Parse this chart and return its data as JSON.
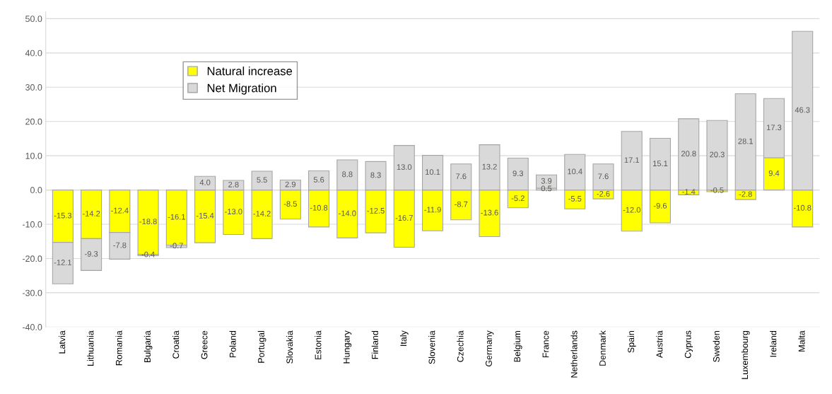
{
  "chart_data": {
    "type": "bar",
    "stacked": true,
    "categories": [
      "Latvia",
      "Lithuania",
      "Romania",
      "Bulgaria",
      "Croatia",
      "Greece",
      "Poland",
      "Portugal",
      "Slovakia",
      "Estonia",
      "Hungary",
      "Finland",
      "Italy",
      "Slovenia",
      "Czechia",
      "Germany",
      "Belgium",
      "France",
      "Netherlands",
      "Denmark",
      "Spain",
      "Austria",
      "Cyprus",
      "Sweden",
      "Luxembourg",
      "Ireland",
      "Malta"
    ],
    "series": [
      {
        "name": "Natural increase",
        "color": "#ffff00",
        "values": [
          -15.3,
          -14.2,
          -12.4,
          -18.8,
          -16.1,
          -15.4,
          -13.0,
          -14.2,
          -8.5,
          -10.8,
          -14.0,
          -12.5,
          -16.7,
          -11.9,
          -8.7,
          -13.6,
          -5.2,
          0.5,
          -5.5,
          -2.6,
          -12.0,
          -9.6,
          -1.4,
          -0.5,
          -2.8,
          9.4,
          -10.8
        ],
        "value_labels": [
          "-15.3",
          "-14.2",
          "-12.4",
          "-18.8",
          "-16.1",
          "-15.4",
          "-13.0",
          "-14.2",
          "-8.5",
          "-10.8",
          "-14.0",
          "-12.5",
          "-16.7",
          "-11.9",
          "-8.7",
          "-13.6",
          "-5.2",
          "0.5",
          "-5.5",
          "-2.6",
          "-12.0",
          "-9.6",
          "-1.4",
          "-0.5",
          "-2.8",
          "9.4",
          "-10.8"
        ]
      },
      {
        "name": "Net Migration",
        "color": "#d9d9d9",
        "values": [
          -12.1,
          -9.3,
          -7.8,
          -0.4,
          -0.7,
          4.0,
          2.8,
          5.5,
          2.9,
          5.6,
          8.8,
          8.3,
          13.0,
          10.1,
          7.6,
          13.2,
          9.3,
          3.9,
          10.4,
          7.6,
          17.1,
          15.1,
          20.8,
          20.3,
          28.1,
          17.3,
          46.3
        ],
        "value_labels": [
          "-12.1",
          "-9.3",
          "-7.8",
          "-0.4",
          "-0.7",
          "4.0",
          "2.8",
          "5.5",
          "2.9",
          "5.6",
          "8.8",
          "8.3",
          "13.0",
          "10.1",
          "7.6",
          "13.2",
          "9.3",
          "3.9",
          "10.4",
          "7.6",
          "17.1",
          "15.1",
          "20.8",
          "20.3",
          "28.1",
          "17.3",
          "46.3"
        ]
      }
    ],
    "ylim": [
      -40,
      52
    ],
    "yticks": [
      {
        "value": -40,
        "label": "-40.0"
      },
      {
        "value": -30,
        "label": "-30.0"
      },
      {
        "value": -20,
        "label": "-20.0"
      },
      {
        "value": -10,
        "label": "-10.0"
      },
      {
        "value": 0,
        "label": "0.0"
      },
      {
        "value": 10,
        "label": "10.0"
      },
      {
        "value": 20,
        "label": "20.0"
      },
      {
        "value": 30,
        "label": "30.0"
      },
      {
        "value": 40,
        "label": "40.0"
      },
      {
        "value": 50,
        "label": "50.0"
      }
    ],
    "grid": "y",
    "legend": "top left"
  }
}
